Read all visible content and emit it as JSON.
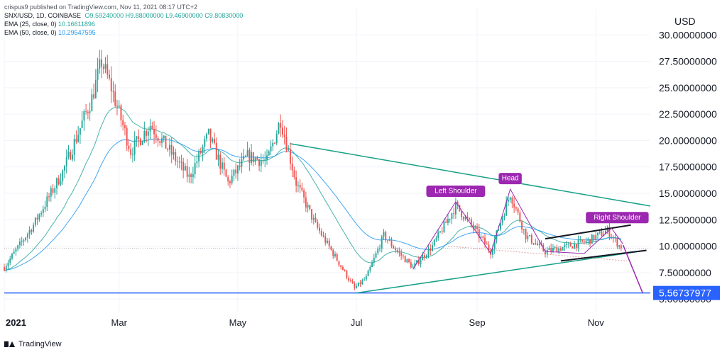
{
  "header": {
    "publisher": "crispus9 published on TradingView.com, Nov 11, 2021 08:17 UTC+2",
    "symbol": "SNX/USD, 1D, COINBASE",
    "ohlc": "O9.59240000  H9.88000000  L9.46900000  C9.80830000",
    "ema25_label": "EMA (25, close, 0)",
    "ema25_value": "10.16611896",
    "ema50_label": "EMA (50, close, 0)",
    "ema50_value": "10.29547595"
  },
  "currency": "USD",
  "footer": {
    "brand": "TradingView"
  },
  "colors": {
    "up": "#26a69a",
    "down": "#ef5350",
    "ema25": "#26a69a",
    "ema50": "#2196f3",
    "support": "#2962ff",
    "pattern": "#9c27b0",
    "trendline": "#16a085"
  },
  "chart_data": {
    "type": "candlestick",
    "yticks": [
      "30.00000000",
      "27.50000000",
      "25.00000000",
      "22.50000000",
      "20.00000000",
      "17.50000000",
      "15.00000000",
      "12.50000000",
      "10.00000000",
      "7.50000000",
      "5.00000000"
    ],
    "ytick_values": [
      30,
      27.5,
      25,
      22.5,
      20,
      17.5,
      15,
      12.5,
      10,
      7.5,
      5
    ],
    "ylim": [
      3.8,
      32.5
    ],
    "xticks": [
      "2021",
      "Mar",
      "May",
      "Jul",
      "Sep",
      "Nov"
    ],
    "xtick_days": [
      0,
      59,
      120,
      181,
      243,
      304
    ],
    "xlim_days": [
      0,
      332
    ],
    "price_label": "5.56737977",
    "price_label_value": 5.567,
    "last_close": 9.8083,
    "annotations": [
      {
        "text": "Left Shoulder",
        "day": 232,
        "price": 15.2
      },
      {
        "text": "Head",
        "day": 260,
        "price": 16.4
      },
      {
        "text": "Right Shoulder",
        "day": 315,
        "price": 12.7
      }
    ],
    "key_prices": [
      {
        "day": 0,
        "price": 8.0
      },
      {
        "day": 15,
        "price": 12.0
      },
      {
        "day": 30,
        "price": 17.0
      },
      {
        "day": 45,
        "price": 24.0
      },
      {
        "day": 50,
        "price": 27.5
      },
      {
        "day": 55,
        "price": 25.0
      },
      {
        "day": 65,
        "price": 19.0
      },
      {
        "day": 75,
        "price": 21.5
      },
      {
        "day": 85,
        "price": 19.0
      },
      {
        "day": 95,
        "price": 16.5
      },
      {
        "day": 105,
        "price": 20.5
      },
      {
        "day": 115,
        "price": 16.0
      },
      {
        "day": 125,
        "price": 18.5
      },
      {
        "day": 135,
        "price": 18.0
      },
      {
        "day": 142,
        "price": 22.0
      },
      {
        "day": 150,
        "price": 16.0
      },
      {
        "day": 160,
        "price": 12.0
      },
      {
        "day": 170,
        "price": 9.0
      },
      {
        "day": 180,
        "price": 6.0
      },
      {
        "day": 186,
        "price": 7.0
      },
      {
        "day": 195,
        "price": 11.0
      },
      {
        "day": 202,
        "price": 9.5
      },
      {
        "day": 210,
        "price": 8.0
      },
      {
        "day": 220,
        "price": 10.0
      },
      {
        "day": 232,
        "price": 13.8
      },
      {
        "day": 240,
        "price": 12.0
      },
      {
        "day": 250,
        "price": 9.5
      },
      {
        "day": 260,
        "price": 15.0
      },
      {
        "day": 268,
        "price": 11.0
      },
      {
        "day": 278,
        "price": 9.5
      },
      {
        "day": 290,
        "price": 10.0
      },
      {
        "day": 300,
        "price": 10.5
      },
      {
        "day": 310,
        "price": 11.5
      },
      {
        "day": 317,
        "price": 9.8
      }
    ],
    "drawings": {
      "support_line": {
        "price": 5.567
      },
      "upper_trendline": [
        {
          "day": 147,
          "price": 19.7
        },
        {
          "day": 332,
          "price": 13.8
        }
      ],
      "lower_trendline": [
        {
          "day": 181,
          "price": 5.567
        },
        {
          "day": 330,
          "price": 9.6
        }
      ],
      "neckline_upper": [
        {
          "day": 278,
          "price": 10.7
        },
        {
          "day": 322,
          "price": 12.0
        }
      ],
      "neckline_lower": [
        {
          "day": 286,
          "price": 8.6
        },
        {
          "day": 330,
          "price": 9.6
        }
      ],
      "projection": [
        {
          "day": 318,
          "price": 10.1
        },
        {
          "day": 328,
          "price": 5.6
        }
      ],
      "pattern_path": [
        {
          "day": 210,
          "price": 7.8
        },
        {
          "day": 232,
          "price": 14.2
        },
        {
          "day": 250,
          "price": 9.3
        },
        {
          "day": 260,
          "price": 15.4
        },
        {
          "day": 278,
          "price": 9.5
        },
        {
          "day": 298,
          "price": 9.3
        },
        {
          "day": 312,
          "price": 11.7
        },
        {
          "day": 318,
          "price": 10.2
        }
      ],
      "dotted_line": [
        {
          "day": 228,
          "price": 10.0
        },
        {
          "day": 320,
          "price": 8.6
        }
      ]
    }
  }
}
